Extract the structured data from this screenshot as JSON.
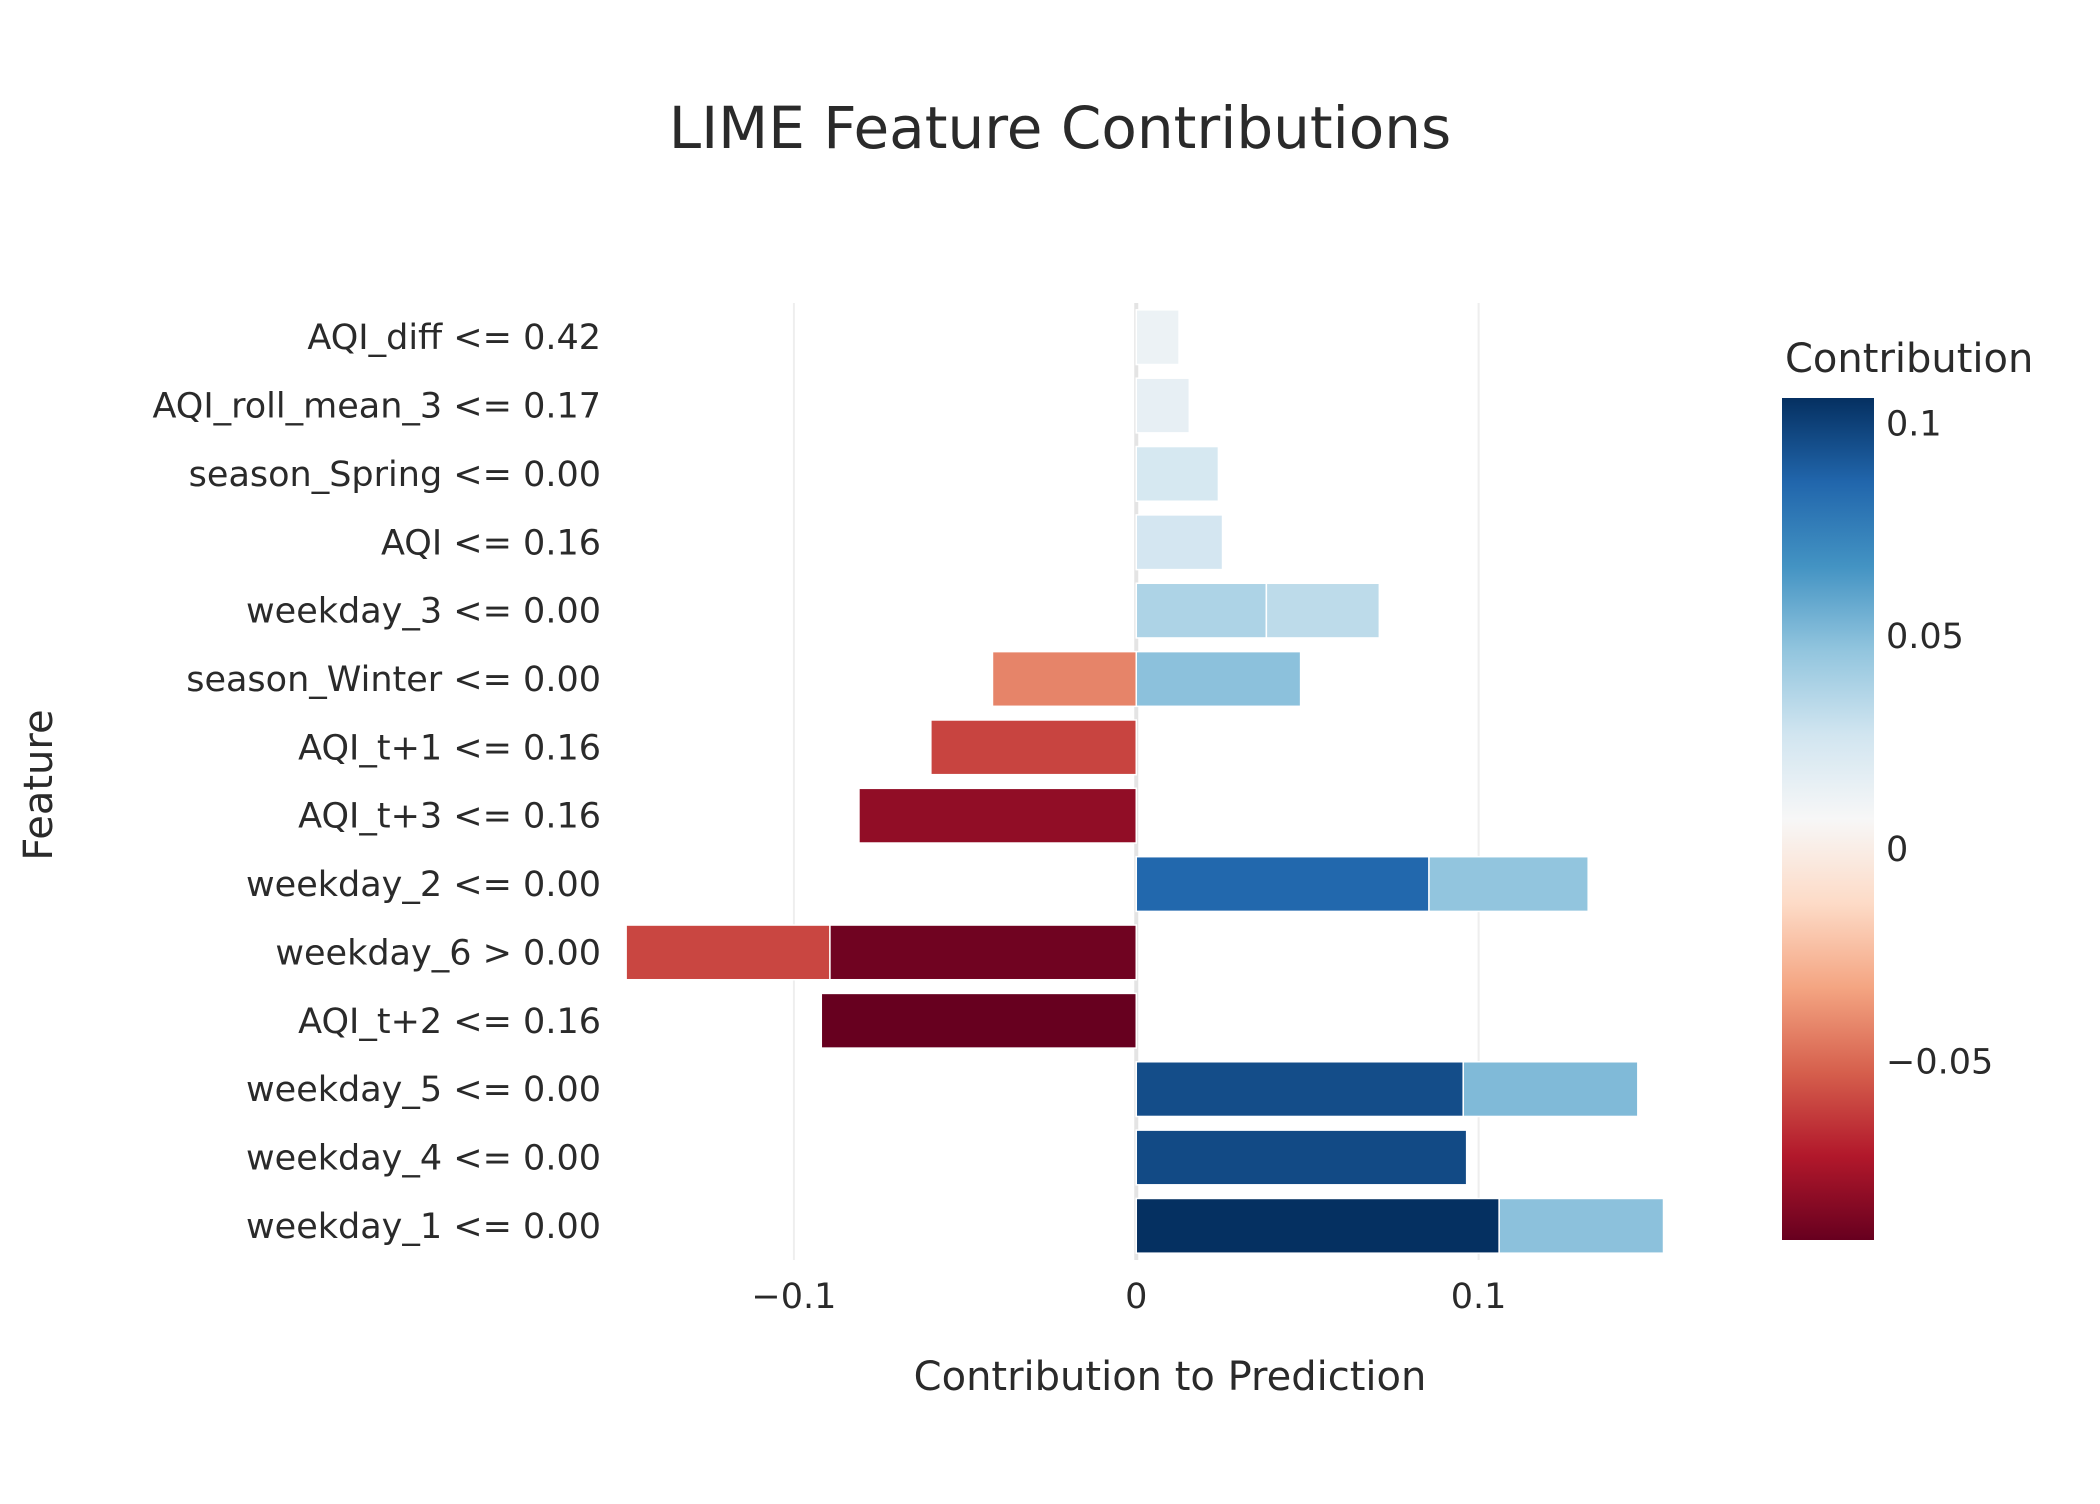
{
  "chart_data": {
    "type": "bar",
    "orientation": "horizontal",
    "barmode": "relative",
    "title": "LIME Feature Contributions",
    "xlabel": "Contribution to Prediction",
    "ylabel": "Feature",
    "xlim": [
      -0.1505,
      0.1705
    ],
    "xticks": [
      {
        "value": -0.1,
        "label": "−0.1"
      },
      {
        "value": 0,
        "label": "0"
      },
      {
        "value": 0.1,
        "label": "0.1"
      }
    ],
    "grid": true,
    "features": [
      "AQI_diff <= 0.42",
      "AQI_roll_mean_3 <= 0.17",
      "season_Spring <= 0.00",
      "AQI <= 0.16",
      "weekday_3 <= 0.00",
      "season_Winter <= 0.00",
      "AQI_t+1 <= 0.16",
      "AQI_t+3 <= 0.16",
      "weekday_2 <= 0.00",
      "weekday_6 > 0.00",
      "AQI_t+2 <= 0.16",
      "weekday_5 <= 0.00",
      "weekday_4 <= 0.00",
      "weekday_1 <= 0.00"
    ],
    "series": [
      {
        "values": [
          0.0125,
          0.0155,
          0.024,
          0.0252,
          0.038,
          -0.042,
          -0.06,
          -0.081,
          0.0855,
          -0.0895,
          -0.092,
          0.0955,
          0.0965,
          0.106
        ]
      },
      {
        "values": [
          null,
          null,
          null,
          null,
          0.033,
          0.048,
          null,
          null,
          0.0465,
          -0.0595,
          null,
          0.051,
          null,
          0.048
        ]
      }
    ],
    "colorbar": {
      "title": "Contribution",
      "colorscale": "RdBu",
      "range": [
        -0.092,
        0.106
      ],
      "ticks": [
        {
          "value": 0.1,
          "label": "0.1"
        },
        {
          "value": 0.05,
          "label": "0.05"
        },
        {
          "value": 0,
          "label": "0"
        },
        {
          "value": -0.05,
          "label": "−0.05"
        }
      ]
    }
  }
}
